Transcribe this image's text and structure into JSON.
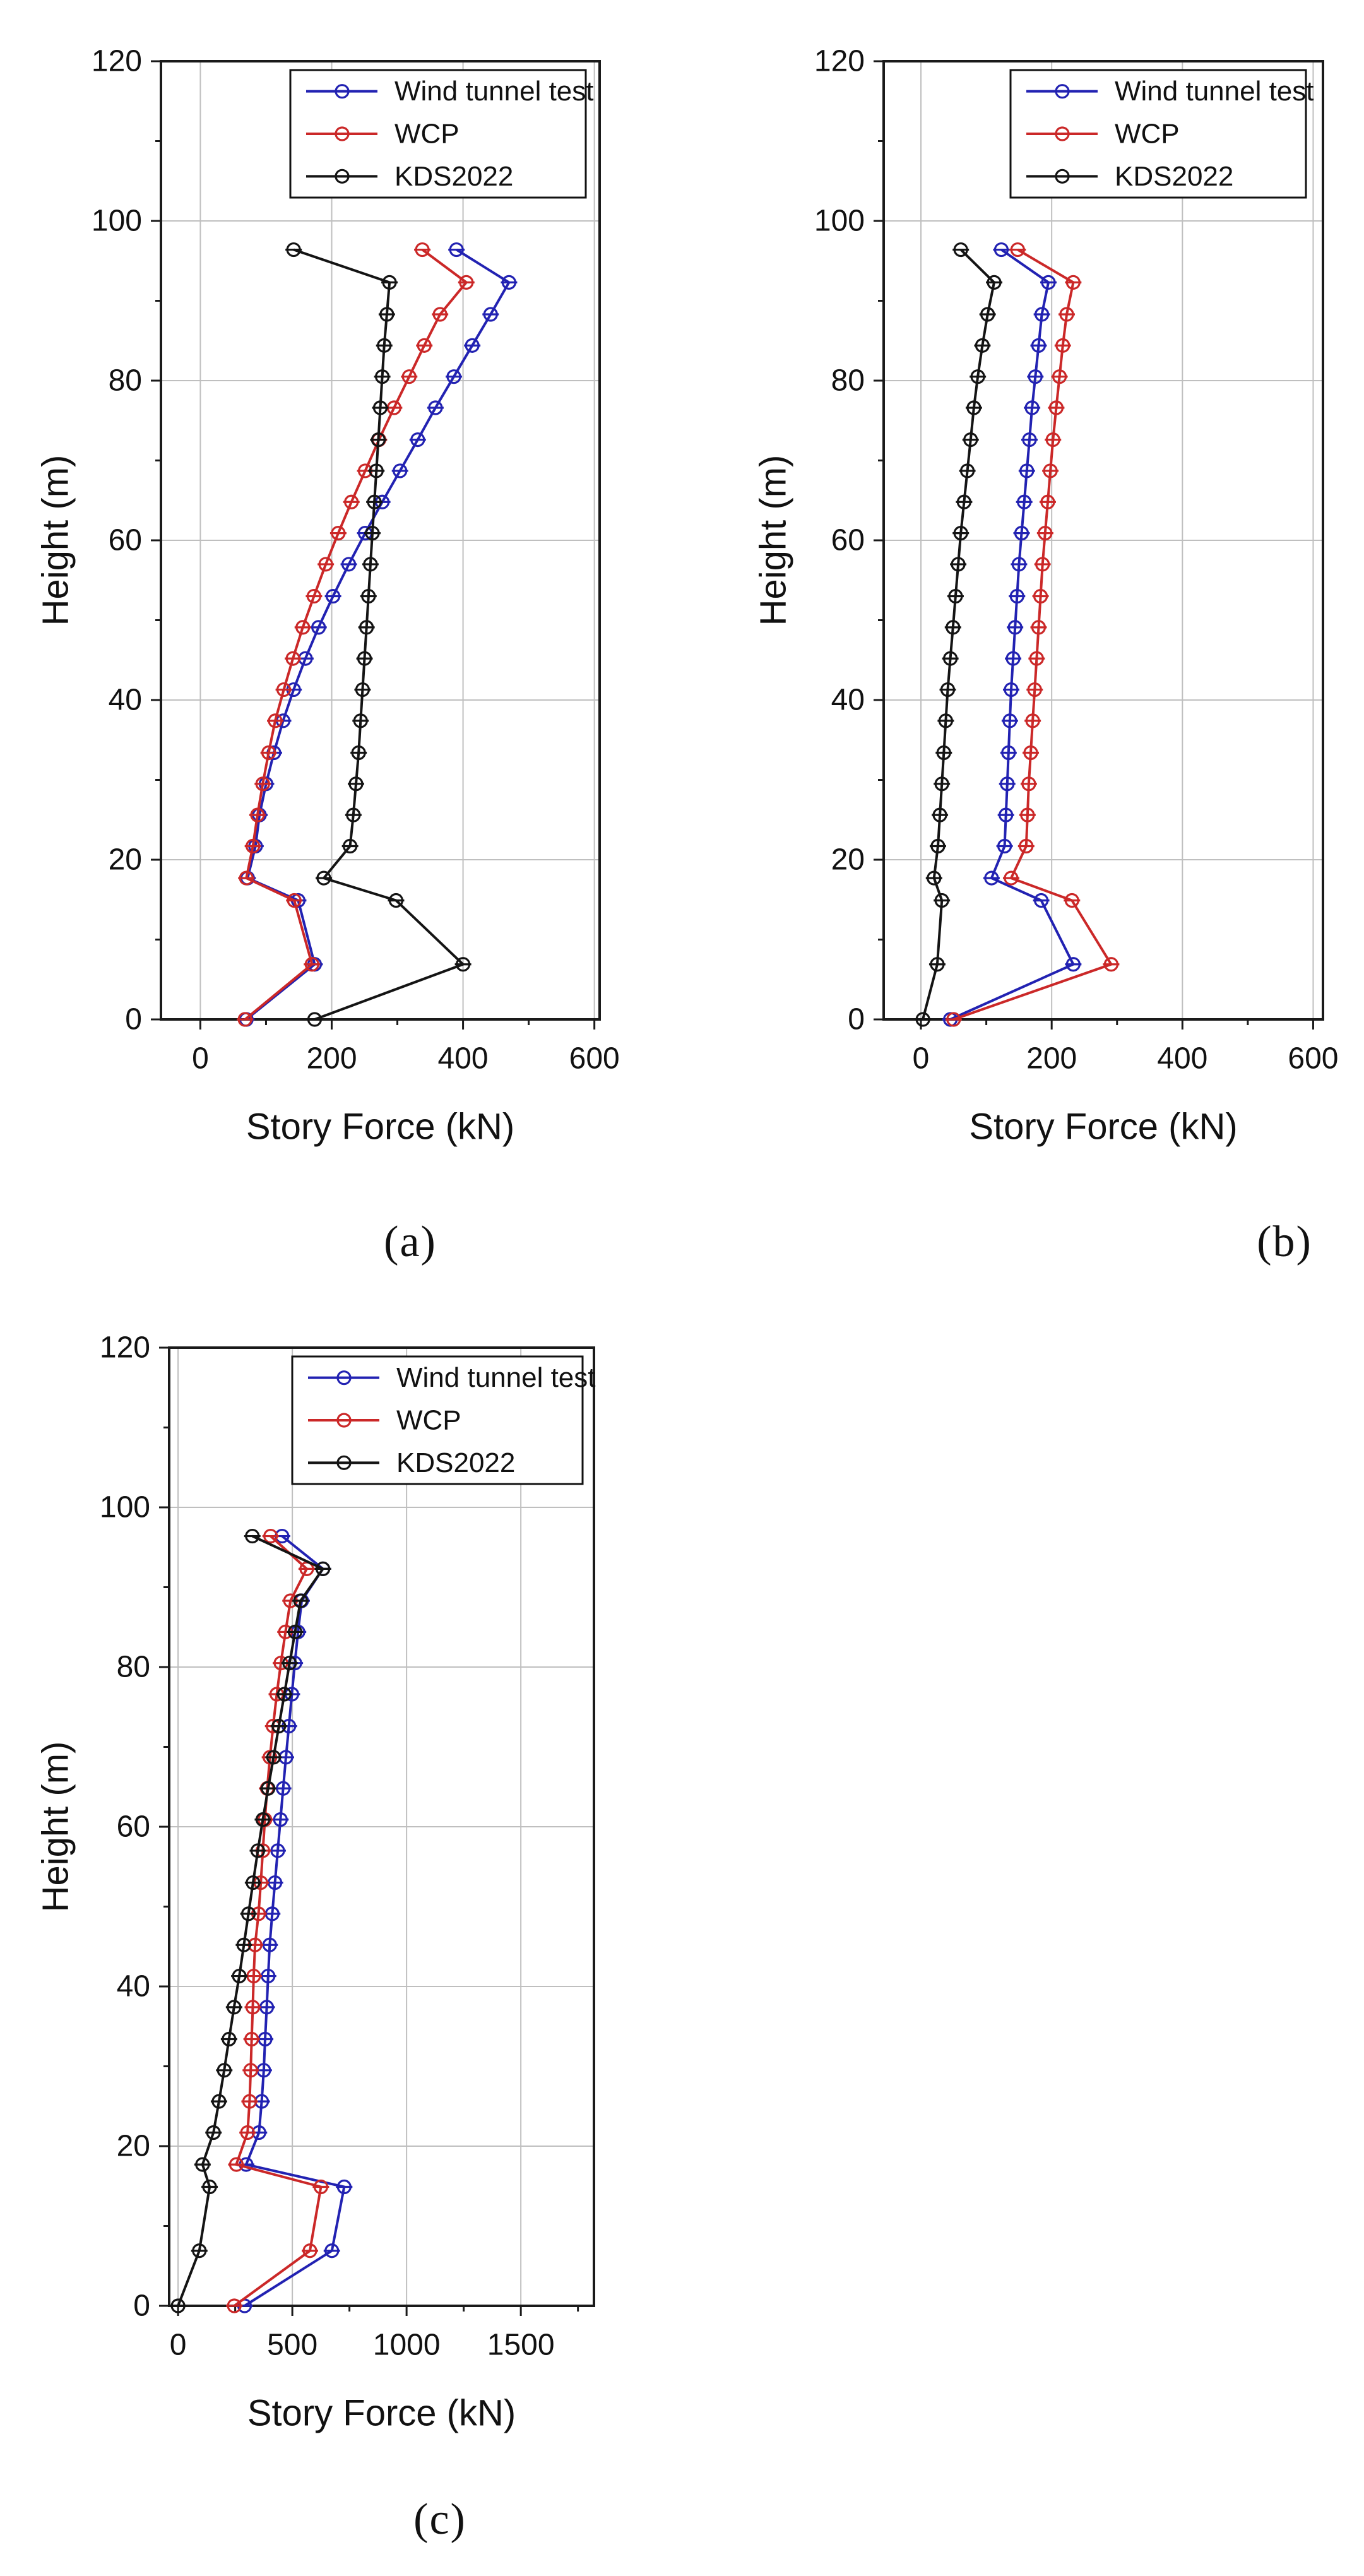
{
  "figure": {
    "background": "#ffffff"
  },
  "chart_data": [
    {
      "id": "a",
      "type": "line",
      "caption": "(a)",
      "xlabel": "Story Force (kN)",
      "ylabel": "Height (m)",
      "xlim": [
        -60,
        608
      ],
      "ylim": [
        0,
        120
      ],
      "xticks": [
        0,
        200,
        400,
        600
      ],
      "xminor": [
        100,
        300,
        500
      ],
      "yticks": [
        0,
        20,
        40,
        60,
        80,
        100,
        120
      ],
      "yminor": [
        10,
        30,
        50,
        70,
        90,
        110
      ],
      "grid": true,
      "legend_position": "top-inside",
      "heights": [
        0,
        6.9,
        14.9,
        17.7,
        21.7,
        25.6,
        29.5,
        33.4,
        37.4,
        41.3,
        45.2,
        49.1,
        53.0,
        57.0,
        60.9,
        64.8,
        68.7,
        72.6,
        76.6,
        80.5,
        84.4,
        88.3,
        92.3,
        96.4
      ],
      "series": [
        {
          "name": "Wind tunnel test",
          "color": "#2222b2",
          "values": [
            70,
            174,
            149,
            72,
            84,
            90,
            100,
            112,
            126,
            142,
            160,
            180,
            202,
            226,
            251,
            277,
            304,
            331,
            358,
            386,
            414,
            442,
            470,
            390
          ]
        },
        {
          "name": "WCP",
          "color": "#cb2828",
          "values": [
            68,
            170,
            143,
            70,
            80,
            87,
            95,
            104,
            114,
            127,
            141,
            156,
            173,
            191,
            210,
            230,
            251,
            272,
            295,
            318,
            341,
            365,
            405,
            338
          ]
        },
        {
          "name": "KDS2022",
          "color": "#141414",
          "values": [
            174,
            400,
            298,
            188,
            228,
            233,
            237,
            241,
            244,
            247,
            250,
            253,
            256,
            259,
            262,
            265,
            268,
            271,
            274,
            277,
            280,
            284,
            288,
            142
          ]
        }
      ]
    },
    {
      "id": "b",
      "type": "line",
      "caption": "(b)",
      "xlabel": "Story Force (kN)",
      "ylabel": "Height (m)",
      "xlim": [
        -57,
        615
      ],
      "ylim": [
        0,
        120
      ],
      "xticks": [
        0,
        200,
        400,
        600
      ],
      "xminor": [
        100,
        300,
        500
      ],
      "yticks": [
        0,
        20,
        40,
        60,
        80,
        100,
        120
      ],
      "yminor": [
        10,
        30,
        50,
        70,
        90,
        110
      ],
      "grid": true,
      "legend_position": "top-inside",
      "heights": [
        0,
        6.9,
        14.9,
        17.7,
        21.7,
        25.6,
        29.5,
        33.4,
        37.4,
        41.3,
        45.2,
        49.1,
        53.0,
        57.0,
        60.9,
        64.8,
        68.7,
        72.6,
        76.6,
        80.5,
        84.4,
        88.3,
        92.3,
        96.4
      ],
      "series": [
        {
          "name": "Wind tunnel test",
          "color": "#2222b2",
          "values": [
            45,
            233,
            184,
            108,
            128,
            130,
            132,
            134,
            136,
            138,
            141,
            144,
            147,
            150,
            154,
            158,
            162,
            166,
            170,
            175,
            180,
            185,
            195,
            123
          ]
        },
        {
          "name": "WCP",
          "color": "#cb2828",
          "values": [
            50,
            291,
            231,
            138,
            161,
            163,
            165,
            168,
            171,
            174,
            177,
            180,
            183,
            186,
            190,
            194,
            198,
            202,
            207,
            212,
            217,
            223,
            233,
            148
          ]
        },
        {
          "name": "KDS2022",
          "color": "#141414",
          "values": [
            3,
            25,
            32,
            20,
            26,
            29,
            32,
            35,
            38,
            41,
            45,
            49,
            53,
            57,
            61,
            66,
            71,
            76,
            81,
            87,
            94,
            102,
            112,
            61
          ]
        }
      ]
    },
    {
      "id": "c",
      "type": "line",
      "caption": "(c)",
      "xlabel": "Story Force (kN)",
      "ylabel": "Height (m)",
      "xlim": [
        -39,
        1820
      ],
      "ylim": [
        0,
        120
      ],
      "xticks": [
        0,
        500,
        1000,
        1500
      ],
      "xminor": [
        250,
        750,
        1250,
        1750
      ],
      "yticks": [
        0,
        20,
        40,
        60,
        80,
        100,
        120
      ],
      "yminor": [
        10,
        30,
        50,
        70,
        90,
        110
      ],
      "grid": true,
      "legend_position": "top-inside",
      "heights": [
        0,
        6.9,
        14.9,
        17.7,
        21.7,
        25.6,
        29.5,
        33.4,
        37.4,
        41.3,
        45.2,
        49.1,
        53.0,
        57.0,
        60.9,
        64.8,
        68.7,
        72.6,
        76.6,
        80.5,
        84.4,
        88.3,
        92.3,
        96.4
      ],
      "series": [
        {
          "name": "Wind tunnel test",
          "color": "#2222b2",
          "values": [
            291,
            673,
            727,
            298,
            354,
            366,
            375,
            381,
            388,
            394,
            401,
            412,
            424,
            436,
            448,
            460,
            472,
            485,
            498,
            511,
            525,
            541,
            634,
            455
          ]
        },
        {
          "name": "WCP",
          "color": "#cb2828",
          "values": [
            246,
            577,
            625,
            255,
            304,
            313,
            318,
            322,
            327,
            331,
            337,
            352,
            362,
            371,
            380,
            390,
            402,
            416,
            432,
            450,
            470,
            492,
            563,
            405
          ]
        },
        {
          "name": "KDS2022",
          "color": "#141414",
          "values": [
            0,
            93,
            138,
            107,
            155,
            179,
            202,
            223,
            245,
            268,
            288,
            308,
            328,
            349,
            371,
            394,
            418,
            441,
            465,
            488,
            512,
            536,
            634,
            325
          ]
        }
      ]
    }
  ]
}
